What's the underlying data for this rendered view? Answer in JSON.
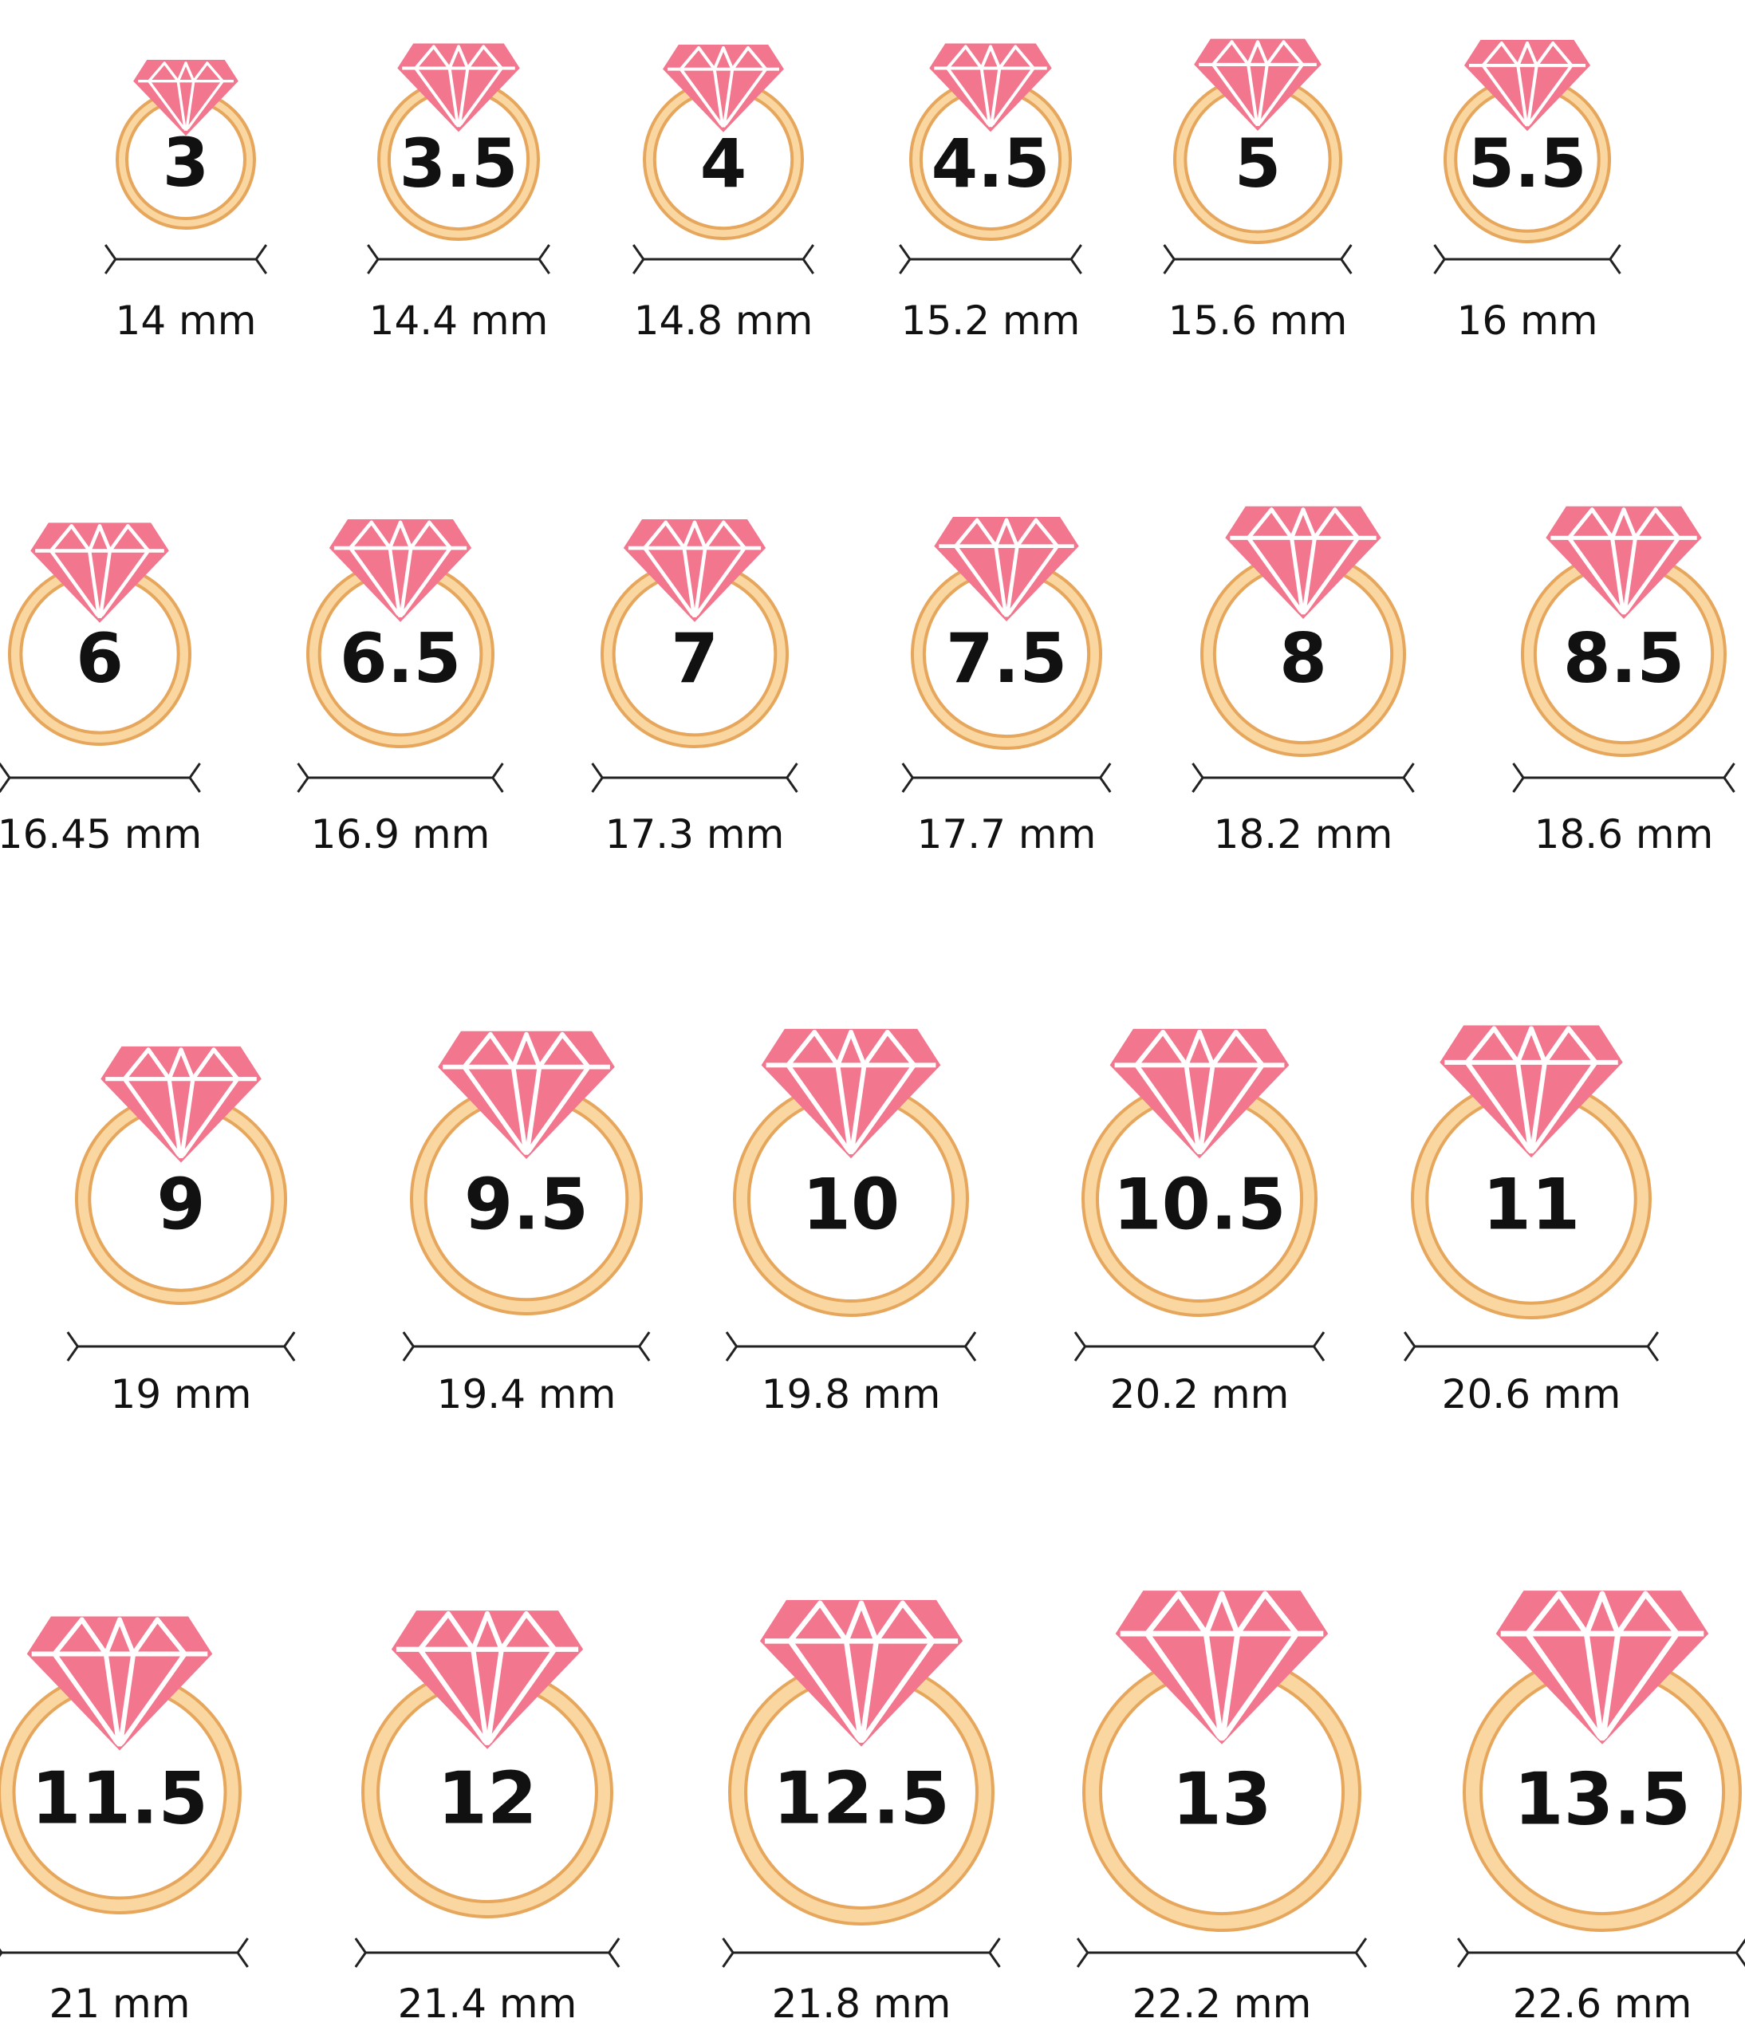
{
  "colors": {
    "gem": "#F2778E",
    "gem_facet": "#FFFFFF",
    "band_fill": "#FAD7A0",
    "band_stroke": "#E6A65C",
    "text": "#111111",
    "measure_line": "#222222"
  },
  "icon": "diamond-ring-icon",
  "rows": [
    [
      {
        "size": "3",
        "diameter": "14 mm"
      },
      {
        "size": "3.5",
        "diameter": "14.4 mm"
      },
      {
        "size": "4",
        "diameter": "14.8 mm"
      },
      {
        "size": "4.5",
        "diameter": "15.2 mm"
      },
      {
        "size": "5",
        "diameter": "15.6 mm"
      },
      {
        "size": "5.5",
        "diameter": "16 mm"
      }
    ],
    [
      {
        "size": "6",
        "diameter": "16.45 mm"
      },
      {
        "size": "6.5",
        "diameter": "16.9 mm"
      },
      {
        "size": "7",
        "diameter": "17.3 mm"
      },
      {
        "size": "7.5",
        "diameter": "17.7 mm"
      },
      {
        "size": "8",
        "diameter": "18.2 mm"
      },
      {
        "size": "8.5",
        "diameter": "18.6 mm"
      }
    ],
    [
      {
        "size": "9",
        "diameter": "19 mm"
      },
      {
        "size": "9.5",
        "diameter": "19.4 mm"
      },
      {
        "size": "10",
        "diameter": "19.8 mm"
      },
      {
        "size": "10.5",
        "diameter": "20.2 mm"
      },
      {
        "size": "11",
        "diameter": "20.6 mm"
      }
    ],
    [
      {
        "size": "11.5",
        "diameter": "21 mm"
      },
      {
        "size": "12",
        "diameter": "21.4 mm"
      },
      {
        "size": "12.5",
        "diameter": "21.8 mm"
      },
      {
        "size": "13",
        "diameter": "22.2 mm"
      },
      {
        "size": "13.5",
        "diameter": "22.6 mm"
      }
    ]
  ]
}
